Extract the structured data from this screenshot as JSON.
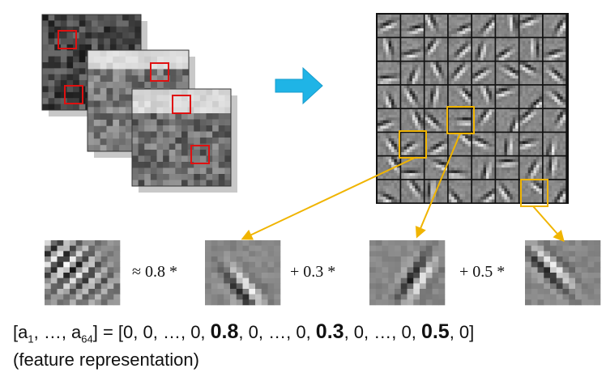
{
  "equation": {
    "terms": [
      "≈ 0.8 *",
      "+ 0.3 *",
      "+ 0.5 *"
    ]
  },
  "representation": {
    "parts": [
      "[a",
      "1",
      ", …, a",
      "64",
      "] = [",
      "0, 0, …, 0, ",
      "0.8",
      ", 0, …, 0, ",
      "0.3",
      ", 0, …, 0, ",
      "0.5",
      ", 0]"
    ],
    "caption": "(feature representation)"
  }
}
